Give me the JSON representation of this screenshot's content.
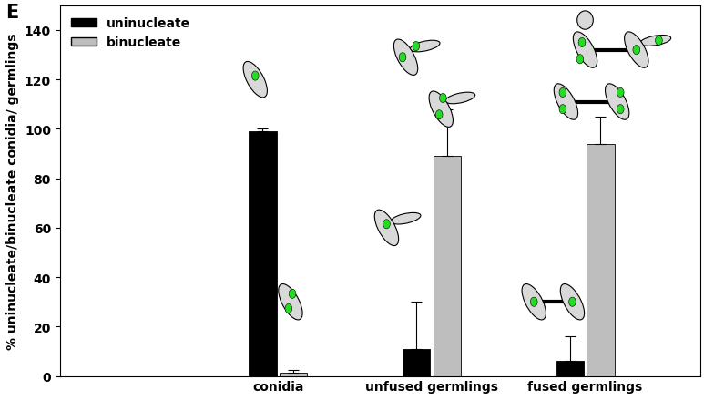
{
  "chart_data": {
    "type": "bar",
    "title": "E",
    "ylabel": "% uninucleate/binucleate conidia/ germlings",
    "categories": [
      "conidia",
      "unfused germlings",
      "fused germlings"
    ],
    "series": [
      {
        "name": "uninucleate",
        "color": "#000000",
        "values": [
          99,
          11,
          6
        ],
        "errors": [
          1,
          19,
          10
        ]
      },
      {
        "name": "binucleate",
        "color": "#bebebe",
        "values": [
          1.5,
          89,
          94
        ],
        "errors": [
          1,
          19,
          11
        ]
      }
    ],
    "ylim": [
      0,
      150
    ],
    "yticks": [
      0,
      20,
      40,
      60,
      80,
      100,
      120,
      140
    ],
    "legend": "upper left",
    "grid": false
  }
}
